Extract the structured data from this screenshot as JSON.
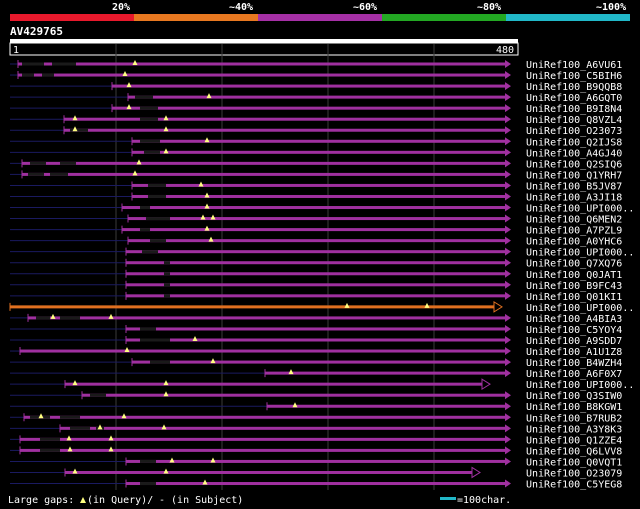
{
  "legend_bar": {
    "segments": [
      {
        "label": "20%",
        "color": "#e8192c"
      },
      {
        "label": "~40%",
        "color": "#e87820"
      },
      {
        "label": "~60%",
        "color": "#a630a6"
      },
      {
        "label": "~80%",
        "color": "#23a823"
      },
      {
        "label": "~100%",
        "color": "#21b8c8"
      }
    ]
  },
  "query": {
    "id": "AV429765",
    "start_label": "1",
    "end_label": "480"
  },
  "hits": [
    {
      "name": "UniRef100_A6VU61"
    },
    {
      "name": "UniRef100_C5BIH6"
    },
    {
      "name": "UniRef100_B9QQB8"
    },
    {
      "name": "UniRef100_A6GQT0"
    },
    {
      "name": "UniRef100_B9I8N4"
    },
    {
      "name": "UniRef100_Q8VZL4"
    },
    {
      "name": "UniRef100_O23073"
    },
    {
      "name": "UniRef100_Q2IJS8"
    },
    {
      "name": "UniRef100_A4GJ40"
    },
    {
      "name": "UniRef100_Q2SIQ6"
    },
    {
      "name": "UniRef100_Q1YRH7"
    },
    {
      "name": "UniRef100_B5JV87"
    },
    {
      "name": "UniRef100_A3JI18"
    },
    {
      "name": "UniRef100_UPI000.."
    },
    {
      "name": "UniRef100_Q6MEN2"
    },
    {
      "name": "UniRef100_A7PZL9"
    },
    {
      "name": "UniRef100_A0YHC6"
    },
    {
      "name": "UniRef100_UPI000.."
    },
    {
      "name": "UniRef100_Q7XQ76"
    },
    {
      "name": "UniRef100_Q0JAT1"
    },
    {
      "name": "UniRef100_B9FC43"
    },
    {
      "name": "UniRef100_Q01KI1"
    },
    {
      "name": "UniRef100_UPI000.."
    },
    {
      "name": "UniRef100_A4BIA3"
    },
    {
      "name": "UniRef100_C5YOY4"
    },
    {
      "name": "UniRef100_A9SDD7"
    },
    {
      "name": "UniRef100_A1U1Z8"
    },
    {
      "name": "UniRef100_B4WZH4"
    },
    {
      "name": "UniRef100_A6F0X7"
    },
    {
      "name": "UniRef100_UPI000.."
    },
    {
      "name": "UniRef100_Q3SIW0"
    },
    {
      "name": "UniRef100_B8KGW1"
    },
    {
      "name": "UniRef100_B7RUB2"
    },
    {
      "name": "UniRef100_A3Y8K3"
    },
    {
      "name": "UniRef100_Q1ZZE4"
    },
    {
      "name": "UniRef100_Q6LVV8"
    },
    {
      "name": "UniRef100_Q0VQT1"
    },
    {
      "name": "UniRef100_O23079"
    },
    {
      "name": "UniRef100_C5YEG8"
    }
  ],
  "footer": {
    "gaps_label": "Large gaps:",
    "query_note": "(in Query)/",
    "subject_note": "- (in Subject)",
    "scale_label": "=100char.",
    "scale_color": "#21b8c8"
  }
}
